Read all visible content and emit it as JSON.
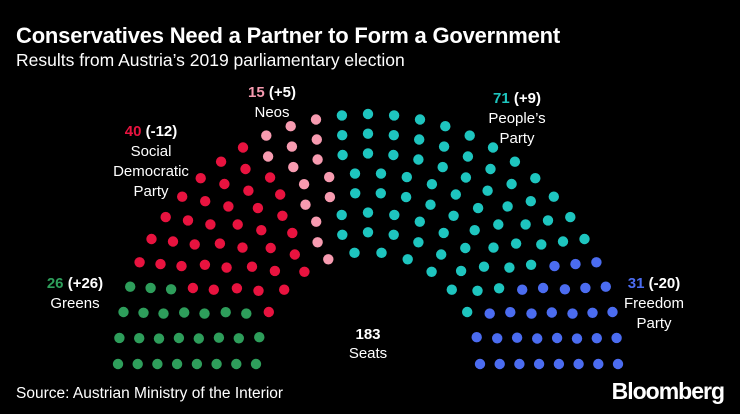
{
  "title": "Conservatives Need a Partner to Form a Government",
  "subtitle": "Results from Austria’s 2019 parliamentary election",
  "source": "Source: Austrian Ministry of the Interior",
  "brand": "Bloomberg",
  "chart_data": {
    "type": "parliament",
    "total_seats": "183",
    "total_label": "Seats",
    "parties": [
      {
        "key": "greens",
        "name": "Greens",
        "seats": 26,
        "change": "(+26)",
        "color": "#2e9e5b"
      },
      {
        "key": "spo",
        "name": "Social Democratic Party",
        "name_lines": [
          "Social",
          "Democratic",
          "Party"
        ],
        "seats": 40,
        "change": "(-12)",
        "color": "#e8133f"
      },
      {
        "key": "neos",
        "name": "Neos",
        "seats": 15,
        "change": "(+5)",
        "color": "#f79bb0"
      },
      {
        "key": "ovp",
        "name": "People’s Party",
        "name_lines": [
          "People’s",
          "Party"
        ],
        "seats": 71,
        "change": "(+9)",
        "color": "#1ec5bf"
      },
      {
        "key": "fpo",
        "name": "Freedom Party",
        "name_lines": [
          "Freedom",
          "Party"
        ],
        "seats": 31,
        "change": "(-20)",
        "color": "#4b6cf0"
      }
    ]
  }
}
